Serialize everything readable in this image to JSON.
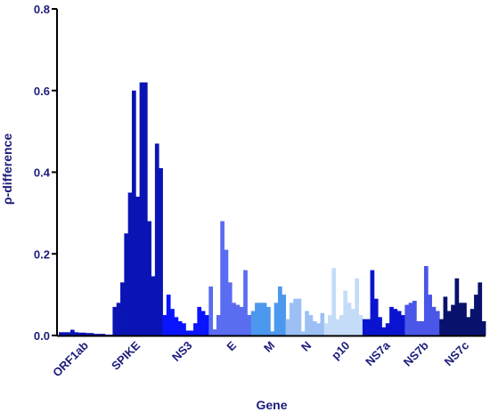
{
  "chart_data": {
    "type": "bar",
    "title": "",
    "xlabel": "Gene",
    "ylabel": "ρ-difference",
    "ylim": [
      0,
      0.8
    ],
    "yticks": [
      "0.0",
      "0.2",
      "0.4",
      "0.6",
      "0.8"
    ],
    "grid": false,
    "legend": "none",
    "genes": [
      {
        "name": "ORF1ab",
        "color": "#0a14b4",
        "values": [
          0.008,
          0.008,
          0.008,
          0.014,
          0.008,
          0.007,
          0.007,
          0.006,
          0.006,
          0.004,
          0.004,
          0.004
        ]
      },
      {
        "name": "SPIKE",
        "color": "#0a14b4",
        "values": [
          0.002,
          0.002,
          0.07,
          0.08,
          0.13,
          0.25,
          0.35,
          0.6,
          0.34,
          0.62,
          0.62,
          0.28,
          0.145,
          0.47,
          0.41
        ]
      },
      {
        "name": "NS3",
        "color": "#0a14ff",
        "values": [
          0.05,
          0.1,
          0.065,
          0.045,
          0.035,
          0.03,
          0.012,
          0.012,
          0.03,
          0.07,
          0.06,
          0.05
        ]
      },
      {
        "name": "E",
        "color": "#5a6cf0",
        "values": [
          0.12,
          0.015,
          0.05,
          0.28,
          0.21,
          0.13,
          0.08,
          0.075,
          0.07,
          0.16,
          0.05
        ]
      },
      {
        "name": "M",
        "color": "#4c98ee",
        "values": [
          0.06,
          0.08,
          0.08,
          0.08,
          0.07,
          0.01,
          0.08,
          0.12,
          0.1
        ]
      },
      {
        "name": "N",
        "color": "#9cc0f4",
        "values": [
          0.04,
          0.08,
          0.09,
          0.09,
          0.01,
          0.06,
          0.05,
          0.035,
          0.03,
          0.055
        ]
      },
      {
        "name": "p10",
        "color": "#c4dcf8",
        "values": [
          0.03,
          0.05,
          0.165,
          0.04,
          0.05,
          0.11,
          0.08,
          0.065,
          0.14,
          0.05
        ]
      },
      {
        "name": "NS7a",
        "color": "#0a14d0",
        "values": [
          0.04,
          0.04,
          0.16,
          0.09,
          0.045,
          0.02,
          0.03,
          0.07,
          0.065,
          0.06,
          0.05
        ]
      },
      {
        "name": "NS7b",
        "color": "#4a56e8",
        "values": [
          0.075,
          0.08,
          0.085,
          0.035,
          0.035,
          0.17,
          0.1,
          0.07,
          0.06
        ]
      },
      {
        "name": "NS7c",
        "color": "#08126c",
        "values": [
          0.04,
          0.095,
          0.06,
          0.075,
          0.14,
          0.08,
          0.08,
          0.045,
          0.065,
          0.1,
          0.13,
          0.035
        ]
      }
    ]
  }
}
